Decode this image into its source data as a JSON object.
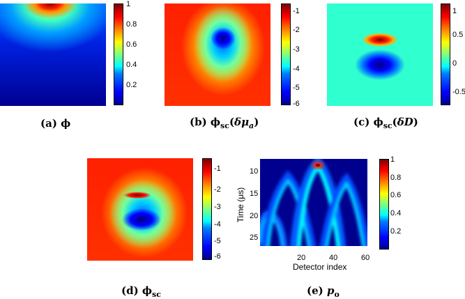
{
  "panels": {
    "a": {
      "caption_prefix": "(a)",
      "symbol": "ϕ",
      "colorbar_ticks": [
        "1",
        "0.8",
        "0.6",
        "0.4",
        "0.2"
      ]
    },
    "b": {
      "caption_prefix": "(b)",
      "symbol": "ϕ",
      "symbol_sub": "sc",
      "arg_open": "(",
      "arg_delta": "δ",
      "arg_var": "μ",
      "arg_sub": "a",
      "arg_close": ")",
      "colorbar_ticks": [
        "-1",
        "-2",
        "-3",
        "-4",
        "-5",
        "-6"
      ]
    },
    "c": {
      "caption_prefix": "(c)",
      "symbol": "ϕ",
      "symbol_sub": "sc",
      "arg_open": "(",
      "arg_delta": "δ",
      "arg_var": "D",
      "arg_close": ")",
      "colorbar_ticks": [
        "1",
        "0.5",
        "0",
        "-0.5"
      ]
    },
    "d": {
      "caption_prefix": "(d)",
      "symbol": "ϕ",
      "symbol_sub": "sc",
      "colorbar_ticks": [
        "-1",
        "-2",
        "-3",
        "-4",
        "-5",
        "-6"
      ]
    },
    "e": {
      "caption_prefix": "(e)",
      "symbol": "p",
      "symbol_sub": "o",
      "colorbar_ticks": [
        "1",
        "0.8",
        "0.6",
        "0.4",
        "0.2"
      ],
      "xlabel": "Detector index",
      "ylabel": "Time (μs)",
      "xticks": [
        "20",
        "40",
        "60"
      ],
      "yticks": [
        "10",
        "15",
        "20",
        "25"
      ]
    }
  }
}
